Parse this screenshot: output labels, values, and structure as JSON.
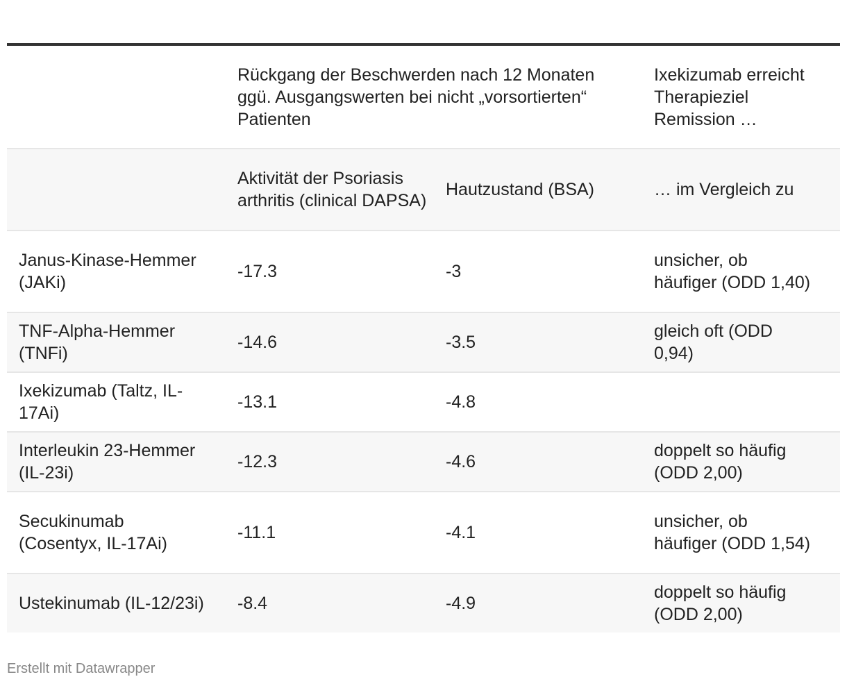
{
  "chart_data": {
    "type": "table",
    "header_groups": [
      "",
      "Rückgang der Beschwerden nach 12 Monaten ggü. Ausgangswerten bei nicht „vorsortierten“ Patienten",
      "Ixekizumab erreicht Therapieziel Remission …"
    ],
    "columns": [
      "",
      "Aktivität der Psoriasis arthritis (clinical DAPSA)",
      "Hautzustand (BSA)",
      "… im Vergleich zu"
    ],
    "rows": [
      [
        "Janus-Kinase-Hemmer (JAKi)",
        "-17.3",
        "-3",
        "unsicher, ob häufiger (ODD 1,40)"
      ],
      [
        "TNF-Alpha-Hemmer (TNFi)",
        "-14.6",
        "-3.5",
        "gleich oft (ODD 0,94)"
      ],
      [
        "Ixekizumab (Taltz, IL-17Ai)",
        "-13.1",
        "-4.8",
        ""
      ],
      [
        "Interleukin 23-Hemmer (IL-23i)",
        "-12.3",
        "-4.6",
        "doppelt so häufig (ODD 2,00)"
      ],
      [
        "Secukinumab (Cosentyx, IL-17Ai)",
        "-11.1",
        "-4.1",
        "unsicher, ob häufiger (ODD 1,54)"
      ],
      [
        "Ustekinumab (IL-12/23i)",
        "-8.4",
        "-4.9",
        "doppelt so häufig (ODD 2,00)"
      ]
    ]
  },
  "footer": "Erstellt mit Datawrapper"
}
